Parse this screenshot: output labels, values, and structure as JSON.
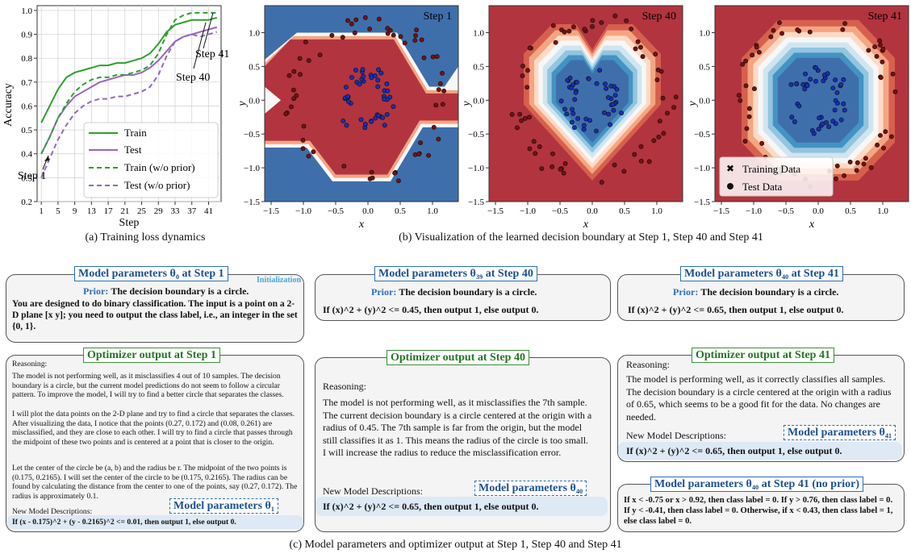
{
  "chart_data": [
    {
      "type": "line",
      "title": "",
      "xlabel": "Step",
      "ylabel": "Accuracy",
      "xlim": [
        0,
        44
      ],
      "ylim": [
        0.2,
        1.02
      ],
      "xticks": [
        "1",
        "5",
        "9",
        "13",
        "17",
        "21",
        "25",
        "29",
        "33",
        "37",
        "41"
      ],
      "yticks": [
        "0.2",
        "0.3",
        "0.4",
        "0.5",
        "0.6",
        "0.7",
        "0.8",
        "0.9",
        "1.0"
      ],
      "grid": true,
      "legend_position": "lower-right",
      "series": [
        {
          "name": "Train",
          "style": "solid",
          "color": "#2ca02c",
          "x": [
            1,
            3,
            5,
            7,
            9,
            11,
            13,
            15,
            17,
            19,
            21,
            23,
            25,
            27,
            29,
            31,
            33,
            35,
            37,
            39,
            41,
            43
          ],
          "y": [
            0.53,
            0.6,
            0.67,
            0.72,
            0.74,
            0.75,
            0.76,
            0.77,
            0.77,
            0.78,
            0.78,
            0.79,
            0.8,
            0.82,
            0.86,
            0.91,
            0.94,
            0.95,
            0.96,
            0.96,
            0.96,
            0.97
          ]
        },
        {
          "name": "Test",
          "style": "solid",
          "color": "#9467bd",
          "x": [
            1,
            3,
            5,
            7,
            9,
            11,
            13,
            15,
            17,
            19,
            21,
            23,
            25,
            27,
            29,
            31,
            33,
            35,
            37,
            39,
            41,
            43
          ],
          "y": [
            0.4,
            0.47,
            0.55,
            0.6,
            0.64,
            0.66,
            0.68,
            0.7,
            0.71,
            0.72,
            0.73,
            0.73,
            0.74,
            0.76,
            0.79,
            0.83,
            0.87,
            0.89,
            0.9,
            0.91,
            0.92,
            0.93
          ]
        },
        {
          "name": "Train (w/o prior)",
          "style": "dashed",
          "color": "#2ca02c",
          "x": [
            1,
            3,
            5,
            7,
            9,
            11,
            13,
            15,
            17,
            19,
            21,
            23,
            25,
            27,
            29,
            31,
            33,
            35,
            37,
            39,
            41,
            43
          ],
          "y": [
            0.4,
            0.47,
            0.55,
            0.61,
            0.66,
            0.69,
            0.71,
            0.72,
            0.72,
            0.73,
            0.73,
            0.74,
            0.75,
            0.77,
            0.82,
            0.9,
            0.96,
            0.98,
            0.99,
            0.99,
            0.99,
            0.99
          ]
        },
        {
          "name": "Test (w/o prior)",
          "style": "dashed",
          "color": "#9467bd",
          "x": [
            1,
            3,
            5,
            7,
            9,
            11,
            13,
            15,
            17,
            19,
            21,
            23,
            25,
            27,
            29,
            31,
            33,
            35,
            37,
            39,
            41,
            43
          ],
          "y": [
            0.3,
            0.38,
            0.46,
            0.52,
            0.57,
            0.6,
            0.62,
            0.63,
            0.63,
            0.64,
            0.64,
            0.65,
            0.66,
            0.68,
            0.73,
            0.81,
            0.87,
            0.89,
            0.9,
            0.89,
            0.9,
            0.91
          ]
        }
      ],
      "annotations": [
        {
          "text": "Step 1",
          "x": 1,
          "y": 0.34
        },
        {
          "text": "Step 40",
          "x": 40,
          "y": 0.96
        },
        {
          "text": "Step 41",
          "x": 41,
          "y": 0.99
        }
      ]
    },
    {
      "type": "heatmap",
      "title": "Step 1",
      "xlabel": "x",
      "ylabel": "y",
      "xticks": [
        "−1.5",
        "−1.0",
        "−0.5",
        "0.0",
        "0.5",
        "1.0"
      ],
      "yticks": [
        "−1.5",
        "−1.0",
        "−0.5",
        "0.0",
        "0.5",
        "1.0"
      ],
      "xlim": [
        -1.6,
        1.4
      ],
      "ylim": [
        -1.5,
        1.4
      ]
    },
    {
      "type": "heatmap",
      "title": "Step 40",
      "xlabel": "x",
      "ylabel": "y",
      "xticks": [
        "−1.5",
        "−1.0",
        "−0.5",
        "0.0",
        "0.5",
        "1.0"
      ],
      "yticks": [
        "−1.5",
        "−1.0",
        "−0.5",
        "0.0",
        "0.5",
        "1.0"
      ],
      "xlim": [
        -1.6,
        1.4
      ],
      "ylim": [
        -1.5,
        1.4
      ]
    },
    {
      "type": "heatmap",
      "title": "Step 41",
      "xlabel": "x",
      "ylabel": "y",
      "xticks": [
        "−1.5",
        "−1.0",
        "−0.5",
        "0.0",
        "0.5",
        "1.0"
      ],
      "yticks": [
        "−1.5",
        "−1.0",
        "−0.5",
        "0.0",
        "0.5",
        "1.0"
      ],
      "xlim": [
        -1.6,
        1.4
      ],
      "ylim": [
        -1.5,
        1.4
      ],
      "legend": [
        "Training Data",
        "Test Data"
      ]
    }
  ],
  "legend_a": [
    "Train",
    "Test",
    "Train (w/o prior)",
    "Test (w/o prior)"
  ],
  "colors": {
    "red": "#b2343f",
    "blue": "#3f6fab",
    "green": "#2ca02c",
    "purple": "#9467bd"
  },
  "captions": {
    "a": "(a) Training loss dynamics",
    "b": "(b) Visualization of the learned decision boundary at Step 1, Step 40 and Step 41",
    "c": "(c) Model parameters and optimizer output at Step 1, Step 40 and Step 41"
  },
  "panels": {
    "p1": {
      "tag": "Model parameters θ₀ at Step 1",
      "init": "Initialization",
      "prior_label": "Prior:",
      "prior_text": "The decision boundary is a circle.",
      "body": "You are designed to do binary classification. The input is a point on a 2-D plane [x y]; you need to output the class label, i.e., an integer in the set {0, 1}."
    },
    "p2": {
      "tag": "Model parameters θ₃₉ at Step 40",
      "prior_label": "Prior:",
      "prior_text": "The decision boundary is a circle.",
      "body": "If (x)^2 + (y)^2 <= 0.45, then output 1, else output 0."
    },
    "p3": {
      "tag": "Model parameters θ₄₀ at Step 41",
      "prior_label": "Prior:",
      "prior_text": "The decision boundary is a circle.",
      "body": "If (x)^2 + (y)^2 <= 0.65, then output 1, else output 0."
    },
    "o1": {
      "tag": "Optimizer output at Step 1",
      "reasoning": "Reasoning:",
      "para1": "The model is not performing well, as it misclassifies 4 out of 10 samples. The decision boundary is a circle, but the current model predictions do not seem to follow a circular pattern. To improve the model, I will try to find a better circle that separates the classes.",
      "para2": "I will plot the data points on the 2-D plane and try to find a circle that separates the classes. After visualizing the data, I notice that the points (0.27, 0.172) and (0.08, 0.261) are misclassified, and they are close to each other. I will try to find a circle that passes through the midpoint of these two points and is centered at a point that is closer to the origin.",
      "para3": "Let the center of the circle be (a, b) and the radius be r. The midpoint of the two points is (0.175, 0.2165). I will set the center of the circle to be (0.175, 0.2165). The radius can be found by calculating the distance from the center to one of the points, say (0.27, 0.172). The radius is approximately 0.1.",
      "new_desc": "New Model Descriptions:",
      "mp_tag": "Model parameters θ₁",
      "result": "If (x - 0.175)^2 + (y - 0.2165)^2 <= 0.01, then output 1, else output 0."
    },
    "o2": {
      "tag": "Optimizer output at Step 40",
      "reasoning": "Reasoning:",
      "para1": "The model is not performing well, as it misclassifies the 7th sample. The current decision boundary is a circle centered at the origin with a radius of 0.45. The 7th sample is far from the origin, but the model still classifies it as 1. This means the radius of the circle is too small. I will increase the radius to reduce the misclassification error.",
      "new_desc": "New Model Descriptions:",
      "mp_tag": "Model parameters θ₄₀",
      "result": "If (x)^2 + (y)^2 <= 0.65, then output 1, else output 0."
    },
    "o3": {
      "tag": "Optimizer output at Step 41",
      "reasoning": "Reasoning:",
      "para1": "The model is performing well, as it correctly classifies all samples. The decision boundary is a circle centered at the origin with a radius of 0.65, which seems to be a good fit for the data. No changes are needed.",
      "new_desc": "New Model Descriptions:",
      "mp_tag": "Model parameters θ₄₁",
      "result": "If (x)^2 + (y)^2 <= 0.65, then output 1, else output 0."
    },
    "np": {
      "tag": "Model parameters θ₄₀ at Step 41 (no prior)",
      "body": "If x < -0.75 or x > 0.92, then class label = 0. If y > 0.76, then class label = 0. If y < -0.41, then class label = 0. Otherwise, if x < 0.43, then class label = 1, else class label = 0."
    }
  }
}
